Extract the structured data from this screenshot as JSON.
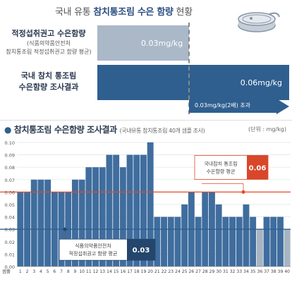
{
  "header": {
    "title_prefix": "국내 유통 ",
    "title_bold": "참치통조림 수은 함량",
    "title_suffix": " 현황"
  },
  "comparison": {
    "recommended": {
      "label_line1": "적정섭취권고 수은함량",
      "label_line2": "(식품의약품안전처",
      "label_line3": "참치통조림 적정섭취권고 함량 평균)",
      "value_label": "0.03mg/kg",
      "value": 0.03
    },
    "measured": {
      "label_line1": "국내 참치 통조림",
      "label_line2": "수은함량 조사결과",
      "value_label": "0.06mg/kg",
      "value": 0.06
    },
    "excess_label": "0.03mg/kg(2배) 초과"
  },
  "chart_title": "참치통조림 수은함량 조사결과",
  "chart_subtitle": "(국내유통 참치통조림 40개 샘플 조사)",
  "unit_label": "(단위 : mg/kg)",
  "annotations": {
    "measured_avg": {
      "line1": "국내참치 통조림",
      "line2": "수은함량 평균",
      "value": "0.06"
    },
    "recommended_avg": {
      "line1": "식품의약품안전처",
      "line2": "적정섭취권고 함량 평균",
      "value": "0.03"
    }
  },
  "colors": {
    "bar": "#3f6d9e",
    "bar_highlight": "#a7b4c2",
    "avg_line": "#e34a2a",
    "recommended_line": "#2f5f8f",
    "measured_box": "#d9472a",
    "recommended_box": "#24466c"
  },
  "chart_data": {
    "type": "bar",
    "title": "참치통조림 수은함량 조사결과",
    "subtitle": "(국내유통 참치통조림 40개 샘플 조사)",
    "x_label": "샘플",
    "y_unit": "mg/kg",
    "ylim": [
      0,
      0.1
    ],
    "yticks": [
      0,
      0.01,
      0.02,
      0.03,
      0.04,
      0.05,
      0.06,
      0.07,
      0.08,
      0.09,
      0.1
    ],
    "categories": [
      "1",
      "2",
      "3",
      "4",
      "5",
      "6",
      "7",
      "8",
      "9",
      "10",
      "11",
      "12",
      "13",
      "14",
      "15",
      "16",
      "17",
      "18",
      "19",
      "20",
      "21",
      "22",
      "23",
      "24",
      "25",
      "26",
      "27",
      "28",
      "29",
      "30",
      "31",
      "32",
      "33",
      "34",
      "35",
      "36",
      "37",
      "38",
      "39",
      "40"
    ],
    "values": [
      0.06,
      0.06,
      0.07,
      0.07,
      0.07,
      0.06,
      0.06,
      0.06,
      0.07,
      0.07,
      0.08,
      0.08,
      0.08,
      0.09,
      0.09,
      0.08,
      0.09,
      0.09,
      0.09,
      0.1,
      0.04,
      0.04,
      0.04,
      0.04,
      0.05,
      0.06,
      0.04,
      0.06,
      0.06,
      0.05,
      0.04,
      0.04,
      0.04,
      0.05,
      0.04,
      0.03,
      0.04,
      0.04,
      0.04,
      0.03
    ],
    "highlighted": [
      36,
      40
    ],
    "reference_lines": [
      {
        "value": 0.06,
        "label": "국내참치 통조림 수은함량 평균"
      },
      {
        "value": 0.03,
        "label": "식품의약품안전처 적정섭취권고 함량 평균"
      }
    ],
    "grid": true,
    "legend": "none"
  }
}
